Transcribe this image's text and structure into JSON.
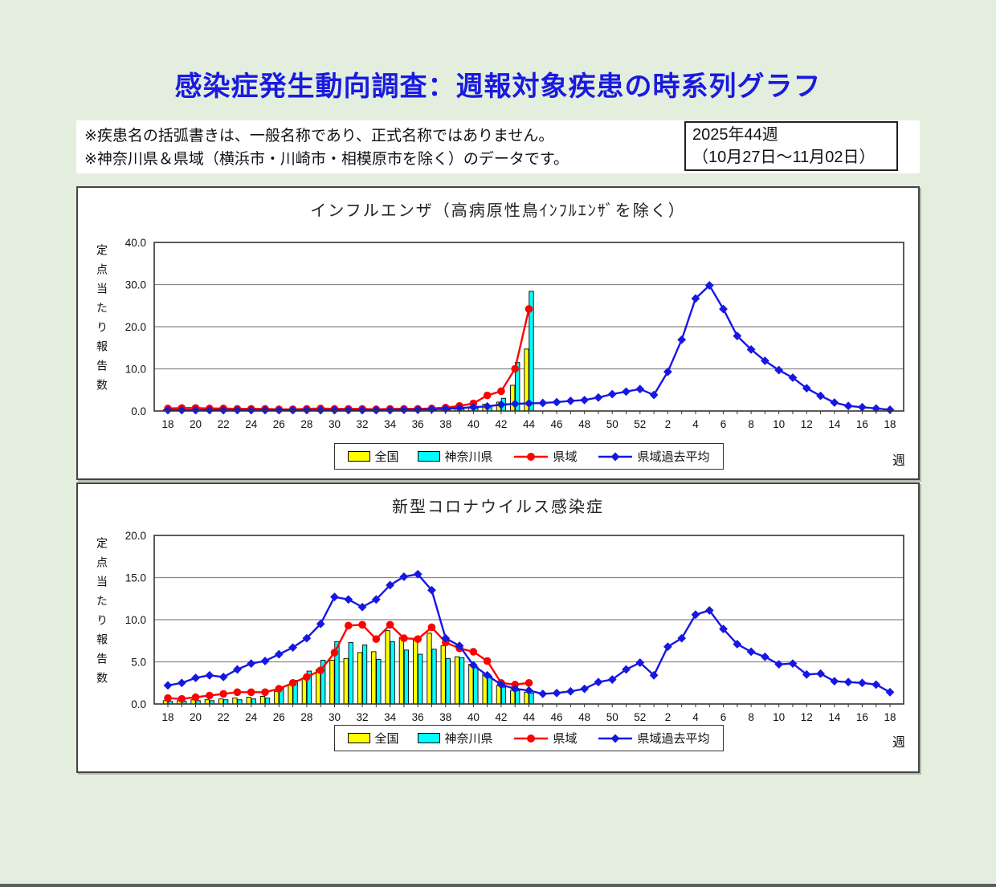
{
  "page": {
    "title": "感染症発生動向調査：週報対象疾患の時系列グラフ"
  },
  "notes": {
    "line1": "※疾患名の括弧書きは、一般名称であり、正式名称ではありません。",
    "line2": "※神奈川県＆県域（横浜市・川崎市・相模原市を除く）のデータです。"
  },
  "period_box": {
    "line1": "2025年44週",
    "line2": "（10月27日～11月02日）"
  },
  "colors": {
    "background": "#E3EEDF",
    "title_blue": "#1A1AE0",
    "zenkoku_yellow": "#FFFF00",
    "kanagawa_cyan": "#00FFFF",
    "keniki_red": "#FF0000",
    "average_blue": "#1717E3"
  },
  "chart_data": [
    {
      "type": "combo",
      "title": "インフルエンザ（高病原性鳥ｲﾝﾌﾙｴﾝｻﾞを除く）",
      "y_axis_label": "定点当たり報告数",
      "x_axis_label": "週",
      "ylim": [
        0,
        40
      ],
      "yticks": [
        0,
        10,
        20,
        30,
        40
      ],
      "grid": true,
      "legend_position": "bottom",
      "x_categories": [
        18,
        19,
        20,
        21,
        22,
        23,
        24,
        25,
        26,
        27,
        28,
        29,
        30,
        31,
        32,
        33,
        34,
        35,
        36,
        37,
        38,
        39,
        40,
        41,
        42,
        43,
        44,
        45,
        46,
        47,
        48,
        49,
        50,
        51,
        52,
        1,
        2,
        3,
        4,
        5,
        6,
        7,
        8,
        9,
        10,
        11,
        12,
        13,
        14,
        15,
        16,
        17,
        18
      ],
      "x_tick_labels": [
        "18",
        "20",
        "22",
        "24",
        "26",
        "28",
        "30",
        "32",
        "34",
        "36",
        "38",
        "40",
        "42",
        "44",
        "46",
        "48",
        "50",
        "52",
        "2",
        "4",
        "6",
        "8",
        "10",
        "12",
        "14",
        "16",
        "18"
      ],
      "series": [
        {
          "name": "全国",
          "type": "bar",
          "color": "#FFFF00",
          "values": [
            0.3,
            0.3,
            0.3,
            0.3,
            0.2,
            0.2,
            0.2,
            0.2,
            0.2,
            0.2,
            0.2,
            0.2,
            0.2,
            0.2,
            0.2,
            0.2,
            0.2,
            0.2,
            0.3,
            0.3,
            0.4,
            0.6,
            1.0,
            1.6,
            2.1,
            6.1,
            14.7,
            null,
            null,
            null,
            null,
            null,
            null,
            null,
            null,
            null,
            null,
            null,
            null,
            null,
            null,
            null,
            null,
            null,
            null,
            null,
            null,
            null,
            null,
            null,
            null,
            null,
            null
          ]
        },
        {
          "name": "神奈川県",
          "type": "bar",
          "color": "#00FFFF",
          "values": [
            0.2,
            0.2,
            0.2,
            0.2,
            0.1,
            0.1,
            0.1,
            0.1,
            0.1,
            0.1,
            0.1,
            0.1,
            0.1,
            0.1,
            0.1,
            0.1,
            0.1,
            0.1,
            0.2,
            0.2,
            0.3,
            0.5,
            0.7,
            1.3,
            3.0,
            11.5,
            28.4,
            null,
            null,
            null,
            null,
            null,
            null,
            null,
            null,
            null,
            null,
            null,
            null,
            null,
            null,
            null,
            null,
            null,
            null,
            null,
            null,
            null,
            null,
            null,
            null,
            null,
            null
          ]
        },
        {
          "name": "県域",
          "type": "line",
          "marker": "circle",
          "color": "#FF0000",
          "values": [
            0.6,
            0.7,
            0.7,
            0.6,
            0.6,
            0.5,
            0.5,
            0.5,
            0.4,
            0.4,
            0.5,
            0.6,
            0.5,
            0.5,
            0.5,
            0.4,
            0.5,
            0.5,
            0.5,
            0.6,
            0.8,
            1.2,
            1.8,
            3.7,
            4.7,
            10.0,
            24.2,
            null,
            null,
            null,
            null,
            null,
            null,
            null,
            null,
            null,
            null,
            null,
            null,
            null,
            null,
            null,
            null,
            null,
            null,
            null,
            null,
            null,
            null,
            null,
            null,
            null,
            null
          ]
        },
        {
          "name": "県域過去平均",
          "type": "line",
          "marker": "diamond",
          "color": "#1717E3",
          "values": [
            0.2,
            0.2,
            0.2,
            0.2,
            0.2,
            0.2,
            0.2,
            0.2,
            0.2,
            0.2,
            0.2,
            0.2,
            0.2,
            0.2,
            0.2,
            0.2,
            0.2,
            0.3,
            0.3,
            0.4,
            0.5,
            0.7,
            0.9,
            1.1,
            1.5,
            1.7,
            1.8,
            1.9,
            2.1,
            2.4,
            2.6,
            3.2,
            4.0,
            4.6,
            5.2,
            3.8,
            9.3,
            16.9,
            26.7,
            29.8,
            24.2,
            17.8,
            14.6,
            11.9,
            9.7,
            7.9,
            5.4,
            3.6,
            2.0,
            1.2,
            0.9,
            0.6,
            0.3
          ]
        }
      ]
    },
    {
      "type": "combo",
      "title": "新型コロナウイルス感染症",
      "y_axis_label": "定点当たり報告数",
      "x_axis_label": "週",
      "ylim": [
        0,
        20
      ],
      "yticks": [
        0,
        5,
        10,
        15,
        20
      ],
      "grid": true,
      "legend_position": "bottom",
      "x_categories": [
        18,
        19,
        20,
        21,
        22,
        23,
        24,
        25,
        26,
        27,
        28,
        29,
        30,
        31,
        32,
        33,
        34,
        35,
        36,
        37,
        38,
        39,
        40,
        41,
        42,
        43,
        44,
        45,
        46,
        47,
        48,
        49,
        50,
        51,
        52,
        1,
        2,
        3,
        4,
        5,
        6,
        7,
        8,
        9,
        10,
        11,
        12,
        13,
        14,
        15,
        16,
        17,
        18
      ],
      "x_tick_labels": [
        "18",
        "20",
        "22",
        "24",
        "26",
        "28",
        "30",
        "32",
        "34",
        "36",
        "38",
        "40",
        "42",
        "44",
        "46",
        "48",
        "50",
        "52",
        "2",
        "4",
        "6",
        "8",
        "10",
        "12",
        "14",
        "16",
        "18"
      ],
      "series": [
        {
          "name": "全国",
          "type": "bar",
          "color": "#FFFF00",
          "values": [
            0.4,
            0.4,
            0.5,
            0.5,
            0.6,
            0.7,
            0.8,
            0.9,
            1.5,
            2.3,
            3.1,
            4.1,
            5.2,
            5.4,
            6.1,
            6.2,
            8.7,
            7.9,
            7.6,
            8.4,
            6.9,
            5.6,
            4.7,
            3.6,
            2.2,
            1.6,
            1.4,
            null,
            null,
            null,
            null,
            null,
            null,
            null,
            null,
            null,
            null,
            null,
            null,
            null,
            null,
            null,
            null,
            null,
            null,
            null,
            null,
            null,
            null,
            null,
            null,
            null,
            null
          ]
        },
        {
          "name": "神奈川県",
          "type": "bar",
          "color": "#00FFFF",
          "values": [
            0.3,
            0.3,
            0.4,
            0.4,
            0.5,
            0.5,
            0.6,
            0.7,
            1.9,
            2.8,
            3.9,
            5.2,
            7.4,
            7.3,
            7.0,
            5.3,
            7.4,
            6.4,
            5.9,
            6.5,
            5.4,
            5.5,
            4.4,
            3.3,
            2.0,
            1.6,
            1.3,
            null,
            null,
            null,
            null,
            null,
            null,
            null,
            null,
            null,
            null,
            null,
            null,
            null,
            null,
            null,
            null,
            null,
            null,
            null,
            null,
            null,
            null,
            null,
            null,
            null,
            null
          ]
        },
        {
          "name": "県域",
          "type": "line",
          "marker": "circle",
          "color": "#FF0000",
          "values": [
            0.7,
            0.6,
            0.8,
            1.0,
            1.2,
            1.4,
            1.4,
            1.4,
            1.8,
            2.5,
            3.2,
            4.0,
            6.1,
            9.3,
            9.4,
            7.7,
            9.4,
            7.8,
            7.7,
            9.1,
            7.3,
            6.6,
            6.2,
            5.1,
            2.5,
            2.3,
            2.5,
            null,
            null,
            null,
            null,
            null,
            null,
            null,
            null,
            null,
            null,
            null,
            null,
            null,
            null,
            null,
            null,
            null,
            null,
            null,
            null,
            null,
            null,
            null,
            null,
            null,
            null
          ]
        },
        {
          "name": "県域過去平均",
          "type": "line",
          "marker": "diamond",
          "color": "#1717E3",
          "values": [
            2.2,
            2.5,
            3.1,
            3.4,
            3.2,
            4.1,
            4.8,
            5.1,
            5.9,
            6.7,
            7.8,
            9.5,
            12.7,
            12.4,
            11.5,
            12.4,
            14.1,
            15.1,
            15.4,
            13.5,
            7.8,
            6.9,
            4.6,
            3.4,
            2.3,
            1.8,
            1.6,
            1.2,
            1.3,
            1.5,
            1.8,
            2.6,
            2.9,
            4.1,
            4.9,
            3.4,
            6.8,
            7.8,
            10.6,
            11.1,
            8.9,
            7.1,
            6.2,
            5.6,
            4.7,
            4.8,
            3.5,
            3.6,
            2.7,
            2.6,
            2.5,
            2.3,
            1.4
          ]
        }
      ]
    }
  ]
}
